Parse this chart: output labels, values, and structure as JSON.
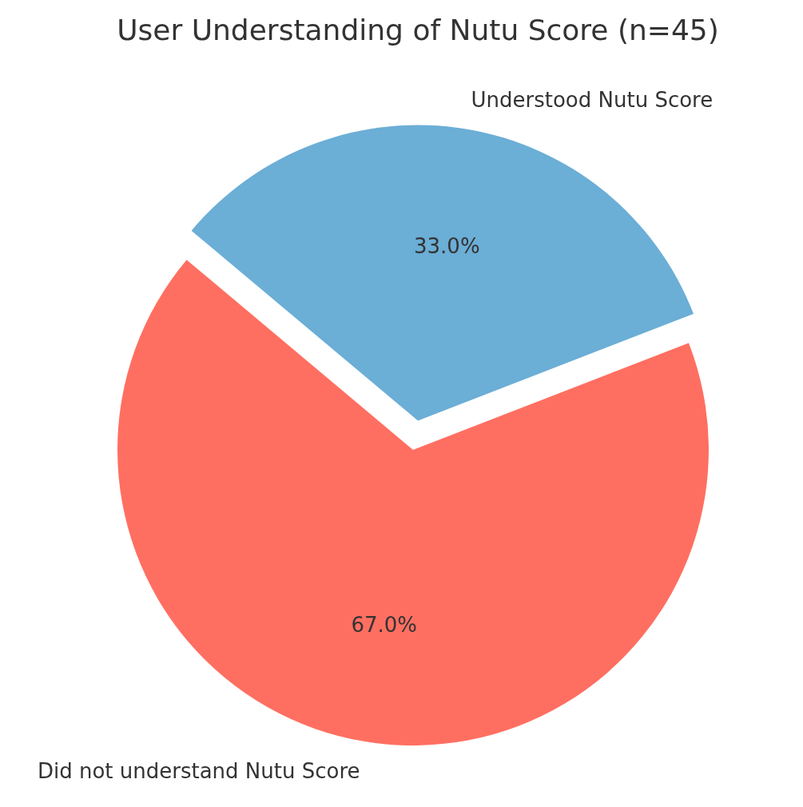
{
  "chart_data": {
    "type": "pie",
    "title": "User Understanding of Nutu Score (n=45)",
    "categories": [
      "Understood Nutu Score",
      "Did not understand Nutu Score"
    ],
    "values": [
      33,
      67
    ],
    "colors": [
      "#6baed6",
      "#ff6f61"
    ],
    "value_labels": [
      "33.0%",
      "67.0%"
    ]
  }
}
